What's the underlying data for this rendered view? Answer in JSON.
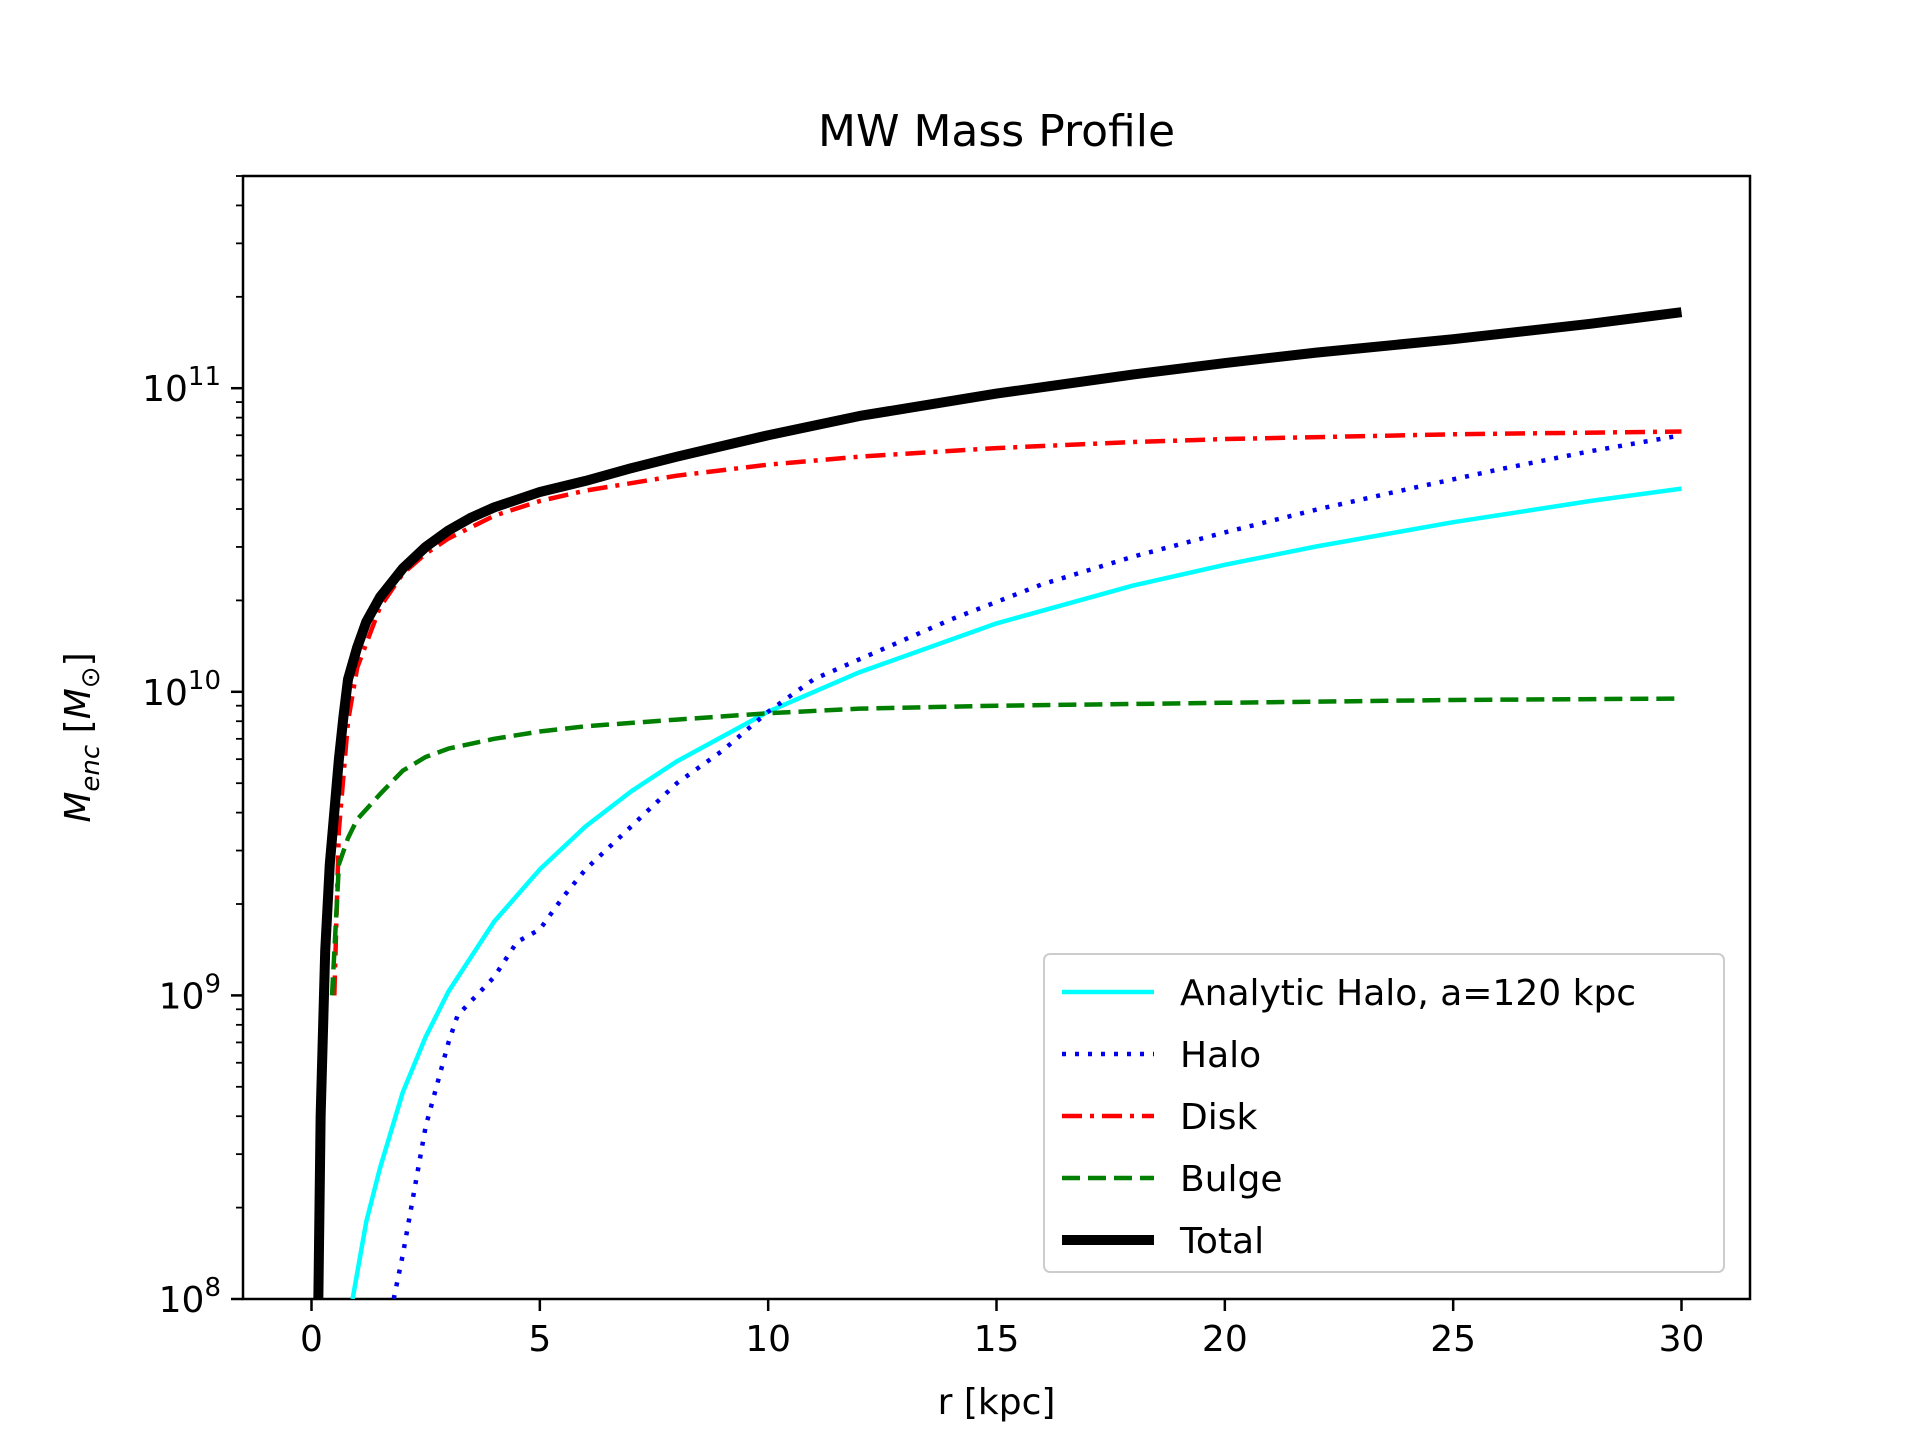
{
  "chart_data": {
    "type": "line",
    "title": "MW Mass Profile",
    "xlabel": "r [kpc]",
    "ylabel": {
      "symbol": "M",
      "subscript": "enc",
      "unit_open": " [",
      "unit_symbol": "M",
      "unit_subscript": "⊙",
      "unit_close": "]"
    },
    "xlim": [
      -1.5,
      31.5
    ],
    "ylim": [
      100000000,
      500000000000
    ],
    "yscale": "log",
    "grid": false,
    "legend_position": "lower-right",
    "xticks": [
      {
        "value": 0,
        "label": "0"
      },
      {
        "value": 5,
        "label": "5"
      },
      {
        "value": 10,
        "label": "10"
      },
      {
        "value": 15,
        "label": "15"
      },
      {
        "value": 20,
        "label": "20"
      },
      {
        "value": 25,
        "label": "25"
      },
      {
        "value": 30,
        "label": "30"
      }
    ],
    "yticks": [
      {
        "value": 100000000,
        "base": "10",
        "exponent": "8"
      },
      {
        "value": 1000000000,
        "base": "10",
        "exponent": "9"
      },
      {
        "value": 10000000000,
        "base": "10",
        "exponent": "10"
      },
      {
        "value": 100000000000,
        "base": "10",
        "exponent": "11"
      }
    ],
    "series": [
      {
        "name": "Analytic Halo, a=120 kpc",
        "color": "#00ffff",
        "dash": "solid",
        "width": "normal",
        "x": [
          0.9,
          1.2,
          1.5,
          2,
          2.5,
          3,
          4,
          5,
          6,
          7,
          8,
          10,
          12,
          15,
          18,
          20,
          22,
          25,
          28,
          30
        ],
        "y": [
          100000000,
          180000000,
          270000000,
          480000000,
          730000000,
          1030000000,
          1750000000,
          2600000000,
          3600000000,
          4700000000,
          5900000000,
          8600000000,
          11600000000,
          16800000000,
          22400000000,
          26200000000,
          30100000000,
          36200000000,
          42500000000,
          46700000000
        ]
      },
      {
        "name": "Halo",
        "color": "#0000ee",
        "dash": "dotted",
        "width": "normal",
        "x": [
          1.8,
          2,
          2.5,
          3,
          3.2,
          4,
          4.5,
          5,
          5.5,
          6,
          7,
          8,
          9,
          10,
          11,
          12,
          14,
          16,
          18,
          20,
          22,
          24,
          26,
          28,
          30
        ],
        "y": [
          100000000,
          140000000,
          370000000,
          700000000,
          860000000,
          1150000000,
          1500000000,
          1650000000,
          2100000000,
          2600000000,
          3600000000,
          5000000000,
          6400000000,
          8600000000,
          11000000000,
          12800000000,
          17300000000,
          22600000000,
          27900000000,
          33500000000,
          39800000000,
          46500000000,
          54000000000,
          62000000000,
          70000000000
        ]
      },
      {
        "name": "Disk",
        "color": "#ff0000",
        "dash": "dashdot",
        "width": "normal",
        "x": [
          0.5,
          0.6,
          0.8,
          1,
          1.5,
          2,
          2.5,
          3,
          4,
          5,
          6,
          8,
          10,
          12,
          15,
          18,
          20,
          25,
          30
        ],
        "y": [
          1000000000,
          3500000000,
          8000000000,
          12000000000,
          19000000000,
          24500000000,
          28500000000,
          32000000000,
          38000000000,
          42500000000,
          46000000000,
          51500000000,
          56000000000,
          59500000000,
          63500000000,
          66500000000,
          68000000000,
          70500000000,
          72000000000
        ]
      },
      {
        "name": "Bulge",
        "color": "#007f00",
        "dash": "dashed",
        "width": "normal",
        "x": [
          0.45,
          0.6,
          0.8,
          1,
          1.5,
          2,
          2.5,
          3,
          4,
          5,
          6,
          8,
          10,
          12,
          15,
          20,
          25,
          30
        ],
        "y": [
          1000000000,
          2700000000,
          3300000000,
          3800000000,
          4600000000,
          5500000000,
          6100000000,
          6500000000,
          7000000000,
          7400000000,
          7700000000,
          8100000000,
          8500000000,
          8800000000,
          9000000000,
          9200000000,
          9400000000,
          9500000000
        ]
      },
      {
        "name": "Total",
        "color": "#000000",
        "dash": "solid",
        "width": "thick",
        "x": [
          0.15,
          0.2,
          0.3,
          0.4,
          0.6,
          0.7,
          0.8,
          1,
          1.2,
          1.5,
          2,
          2.5,
          3,
          3.5,
          4,
          5,
          6,
          7,
          8,
          10,
          12,
          15,
          18,
          20,
          22,
          25,
          28,
          30
        ],
        "y": [
          100000000,
          400000000,
          1400000000,
          2700000000,
          6000000000,
          8300000000,
          11000000000,
          14000000000,
          17000000000,
          20500000000,
          25500000000,
          30000000000,
          34000000000,
          37500000000,
          40500000000,
          45500000000,
          49500000000,
          54500000000,
          59500000000,
          70000000000,
          81000000000,
          96000000000,
          111000000000,
          121000000000,
          131000000000,
          145000000000,
          163000000000,
          178000000000
        ]
      }
    ]
  }
}
